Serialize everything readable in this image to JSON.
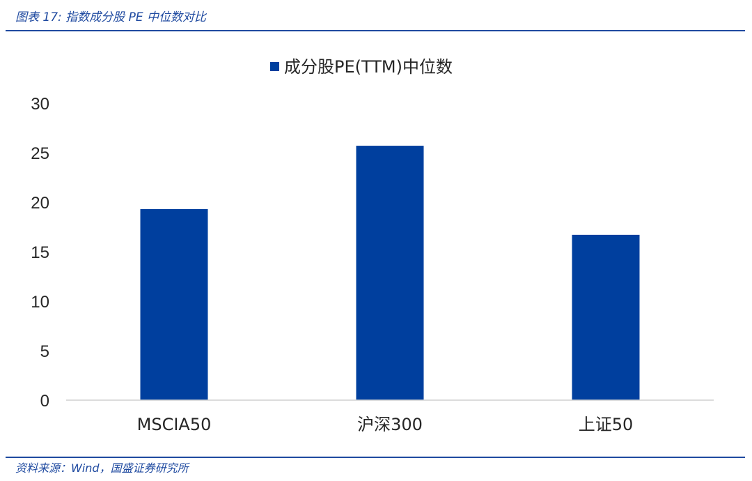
{
  "figure": {
    "caption": "图表 17:  指数成分股 PE 中位数对比",
    "source": "资料来源：Wind，国盛证券研究所"
  },
  "colors": {
    "bar": "#003f9e",
    "rule": "#1f4aa0",
    "axis": "#d0d0d0",
    "text": "#262626"
  },
  "chart_data": {
    "type": "bar",
    "title": "",
    "xlabel": "",
    "ylabel": "",
    "categories": [
      "MSCIA50",
      "沪深300",
      "上证50"
    ],
    "series": [
      {
        "name": "成分股PE(TTM)中位数",
        "values": [
          19.3,
          25.7,
          16.7
        ]
      }
    ],
    "ylim": [
      0,
      30
    ],
    "yticks": [
      0,
      5,
      10,
      15,
      20,
      25,
      30
    ],
    "grid": false,
    "legend": "top-center"
  }
}
